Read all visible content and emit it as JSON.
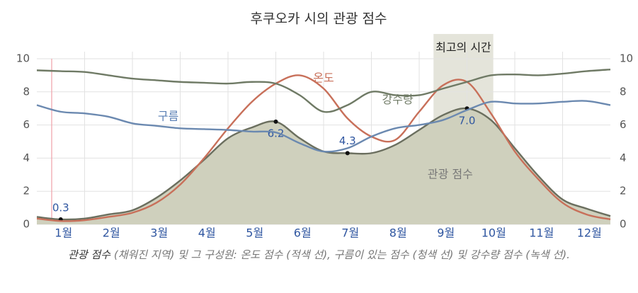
{
  "chart_data": {
    "type": "line",
    "title": "후쿠오카 시의 관광 점수",
    "categories": [
      null,
      "1월",
      null,
      "2월",
      null,
      "3월",
      null,
      "4월",
      null,
      "5월",
      null,
      "6월",
      null,
      "7월",
      null,
      "8월",
      null,
      "9월",
      null,
      "10월",
      null,
      "11월",
      null,
      "12월",
      null
    ],
    "ylim": [
      0,
      10
    ],
    "yticks": [
      0,
      2,
      4,
      6,
      8,
      10
    ],
    "y2lim": [
      0,
      10
    ],
    "y2ticks": [
      0,
      2,
      4,
      6,
      8,
      10
    ],
    "grid": true,
    "best_time": {
      "label": "최고의 시간",
      "from": 16.6,
      "to": 19.1
    },
    "series": [
      {
        "name": "관광 점수",
        "color": "#6b6f5f",
        "fill": "#cfd0bd",
        "area": true,
        "values": [
          0.45,
          0.3,
          0.35,
          0.6,
          0.85,
          1.6,
          2.65,
          3.9,
          5.2,
          5.85,
          6.2,
          5.2,
          4.4,
          4.3,
          4.3,
          4.8,
          5.7,
          6.6,
          7.0,
          6.3,
          4.6,
          2.9,
          1.5,
          0.95,
          0.5
        ],
        "value_labels": [
          null,
          "0.3",
          null,
          null,
          null,
          null,
          null,
          null,
          null,
          null,
          "6.2",
          null,
          null,
          "4.3",
          null,
          null,
          null,
          null,
          "7.0",
          null,
          null,
          null,
          null,
          null,
          null
        ]
      },
      {
        "name": "온도",
        "color": "#c8705a",
        "values": [
          0.35,
          0.2,
          0.25,
          0.45,
          0.7,
          1.3,
          2.4,
          4.0,
          5.8,
          7.4,
          8.5,
          9.0,
          8.2,
          6.4,
          5.3,
          5.1,
          6.8,
          8.4,
          8.6,
          6.7,
          4.4,
          2.7,
          1.3,
          0.6,
          0.3
        ]
      },
      {
        "name": "강수량",
        "color": "#6f7a65",
        "values": [
          9.3,
          9.25,
          9.2,
          9.0,
          8.8,
          8.7,
          8.6,
          8.55,
          8.5,
          8.6,
          8.5,
          7.8,
          6.8,
          7.2,
          8.0,
          7.8,
          7.8,
          8.2,
          8.6,
          9.0,
          9.05,
          9.0,
          9.1,
          9.25,
          9.35
        ]
      },
      {
        "name": "구름",
        "color": "#6b89b0",
        "values": [
          7.2,
          6.8,
          6.7,
          6.5,
          6.1,
          5.95,
          5.8,
          5.75,
          5.7,
          5.6,
          5.55,
          4.9,
          4.4,
          4.6,
          5.3,
          5.8,
          6.0,
          6.3,
          6.9,
          7.4,
          7.3,
          7.3,
          7.4,
          7.45,
          7.2
        ]
      }
    ],
    "caption": [
      "관광 점수",
      " (채워진 지역) 및 그 구성원: 온도 점수 (적색 선), 구름이 있는 점수 (청색 선) 및 강수량 점수 (녹색 선)."
    ]
  }
}
